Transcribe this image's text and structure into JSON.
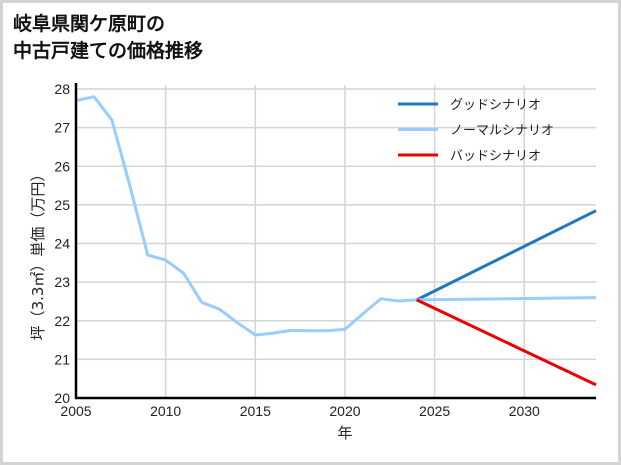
{
  "title": {
    "line1": "岐阜県関ケ原町の",
    "line2": "中古戸建ての価格推移"
  },
  "chart_data": {
    "type": "line",
    "title": "岐阜県関ケ原町の中古戸建ての価格推移",
    "xlabel": "年",
    "ylabel": "坪（3.3㎡）単価（万円）",
    "xlim": [
      2005,
      2034
    ],
    "ylim": [
      20,
      28
    ],
    "xticks": [
      2005,
      2010,
      2015,
      2020,
      2025,
      2030
    ],
    "yticks": [
      20,
      21,
      22,
      23,
      24,
      25,
      26,
      27,
      28
    ],
    "grid": true,
    "legend_position": "upper right",
    "series": [
      {
        "name": "グッドシナリオ",
        "color": "#1f77c4",
        "x": [
          2024,
          2034
        ],
        "values": [
          22.54,
          24.85
        ]
      },
      {
        "name": "ノーマルシナリオ",
        "color": "#99ccff",
        "x": [
          2005,
          2006,
          2007,
          2008,
          2009,
          2010,
          2011,
          2012,
          2013,
          2014,
          2015,
          2016,
          2017,
          2018,
          2019,
          2020,
          2021,
          2022,
          2023,
          2024,
          2034
        ],
        "values": [
          27.7,
          27.8,
          27.2,
          25.5,
          23.7,
          23.57,
          23.23,
          22.48,
          22.3,
          21.95,
          21.63,
          21.68,
          21.75,
          21.74,
          21.74,
          21.78,
          22.18,
          22.57,
          22.51,
          22.54,
          22.6
        ]
      },
      {
        "name": "バッドシナリオ",
        "color": "#ee0000",
        "x": [
          2024,
          2034
        ],
        "values": [
          22.54,
          20.34
        ]
      }
    ]
  }
}
